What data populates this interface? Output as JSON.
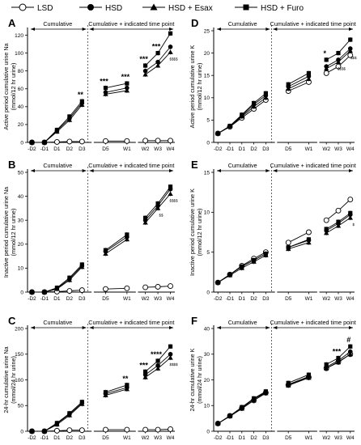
{
  "legend": [
    {
      "label": "LSD",
      "marker": "circle-open"
    },
    {
      "label": "HSD",
      "marker": "circle-filled"
    },
    {
      "label": "HSD + Esax",
      "marker": "triangle-filled"
    },
    {
      "label": "HSD + Furo",
      "marker": "square-filled"
    }
  ],
  "period_labels": {
    "cumulative": "Cumulative",
    "indicated": "Cumulative + indicated time point"
  },
  "colors": {
    "line": "#000000",
    "open_fill": "#ffffff",
    "filled": "#000000"
  },
  "chart_data": [
    {
      "panel": "A",
      "type": "line",
      "ylabel": [
        "Active period cumulative urine Na",
        "(mmol/12 hr urine)"
      ],
      "ylim": [
        0,
        125
      ],
      "yticks": [
        0,
        20,
        40,
        60,
        80,
        100,
        120
      ],
      "categories": [
        "-D2",
        "-D1",
        "D1",
        "D2",
        "D3",
        "D5",
        "W1",
        "W2",
        "W3",
        "W4"
      ],
      "series": [
        {
          "name": "LSD",
          "values": [
            0,
            0,
            0.5,
            1,
            1,
            1.5,
            1.5,
            2,
            2,
            2
          ]
        },
        {
          "name": "HSD",
          "values": [
            0,
            0,
            13,
            27,
            44,
            56,
            61,
            80,
            90,
            107
          ]
        },
        {
          "name": "HSD + Esax",
          "values": [
            0,
            0,
            12,
            25,
            42,
            54,
            58,
            76,
            86,
            101
          ]
        },
        {
          "name": "HSD + Furo",
          "values": [
            0,
            0,
            14,
            29,
            46,
            61,
            66,
            86,
            100,
            122
          ]
        }
      ],
      "annotations": [
        "**",
        "***",
        "***",
        "***",
        "***",
        "$$$$"
      ]
    },
    {
      "panel": "B",
      "type": "line",
      "ylabel": [
        "Inactive period cumulative urine Na",
        "(mmol/12 hr urine)"
      ],
      "ylim": [
        0,
        50
      ],
      "yticks": [
        0,
        10,
        20,
        30,
        40,
        50
      ],
      "categories": [
        "-D2",
        "-D1",
        "D1",
        "D2",
        "D3",
        "D5",
        "W1",
        "W2",
        "W3",
        "W4"
      ],
      "series": [
        {
          "name": "LSD",
          "values": [
            0,
            0,
            0.2,
            0.5,
            0.8,
            1.3,
            1.6,
            2.0,
            2.2,
            2.5
          ]
        },
        {
          "name": "HSD",
          "values": [
            0,
            0,
            1.5,
            5.5,
            11,
            17,
            23,
            30,
            36,
            43
          ]
        },
        {
          "name": "HSD + Esax",
          "values": [
            0,
            0,
            1.3,
            5,
            10.5,
            16,
            22,
            29,
            35,
            41
          ]
        },
        {
          "name": "HSD + Furo",
          "values": [
            0,
            0,
            1.8,
            6,
            11.5,
            17.5,
            24,
            31,
            37,
            44
          ]
        }
      ],
      "annotations": [
        "$$",
        "$$$$"
      ]
    },
    {
      "panel": "C",
      "type": "line",
      "ylabel": [
        "24-hr cumulative urine Na",
        "(mmol/24 hr urine)"
      ],
      "ylim": [
        0,
        200
      ],
      "yticks": [
        0,
        50,
        100,
        150,
        200
      ],
      "categories": [
        "-D2",
        "-D1",
        "D1",
        "D2",
        "D3",
        "D5",
        "W1",
        "W2",
        "W3",
        "W4"
      ],
      "series": [
        {
          "name": "LSD",
          "values": [
            0,
            0,
            1,
            2,
            2,
            3,
            3,
            3,
            3,
            4
          ]
        },
        {
          "name": "HSD",
          "values": [
            0,
            0,
            15,
            33,
            55,
            73,
            85,
            110,
            128,
            150
          ]
        },
        {
          "name": "HSD + Esax",
          "values": [
            0,
            0,
            13,
            31,
            53,
            70,
            82,
            105,
            122,
            143
          ]
        },
        {
          "name": "HSD + Furo",
          "values": [
            0,
            0,
            16,
            35,
            57,
            76,
            90,
            116,
            137,
            165
          ]
        }
      ],
      "annotations": [
        "**",
        "***",
        "****",
        "$$$$"
      ]
    },
    {
      "panel": "D",
      "type": "line",
      "ylabel": [
        "Active period cumulative urine K",
        "(mmol/12 hr urine)"
      ],
      "ylim": [
        0,
        25
      ],
      "yticks": [
        0,
        5,
        10,
        15,
        20,
        25
      ],
      "categories": [
        "-D2",
        "-D1",
        "D1",
        "D2",
        "D3",
        "D5",
        "W1",
        "W2",
        "W3",
        "W4"
      ],
      "series": [
        {
          "name": "LSD",
          "values": [
            2,
            3.5,
            5.5,
            7.5,
            9.5,
            11.5,
            13.5,
            15.5,
            17,
            19.5
          ]
        },
        {
          "name": "HSD",
          "values": [
            2,
            3.6,
            6,
            8.5,
            10.5,
            12.5,
            14.8,
            17,
            18.5,
            21
          ]
        },
        {
          "name": "HSD + Esax",
          "values": [
            2,
            3.6,
            5.8,
            8,
            10,
            12,
            14.2,
            16.5,
            18,
            20.5
          ]
        },
        {
          "name": "HSD + Furo",
          "values": [
            2,
            3.7,
            6.2,
            8.8,
            11,
            13,
            15.5,
            18.5,
            20,
            23
          ]
        }
      ],
      "annotations": [
        "*",
        "$$$$",
        "$$$"
      ]
    },
    {
      "panel": "E",
      "type": "line",
      "ylabel": [
        "Inactive period cumulative urine K",
        "(mmol/12 hr urine)"
      ],
      "ylim": [
        0,
        15
      ],
      "yticks": [
        0,
        5,
        10,
        15
      ],
      "categories": [
        "-D2",
        "-D1",
        "D1",
        "D2",
        "D3",
        "D5",
        "W1",
        "W2",
        "W3",
        "W4"
      ],
      "series": [
        {
          "name": "LSD",
          "values": [
            1.2,
            2.2,
            3.3,
            4.2,
            5.0,
            6.2,
            7.5,
            9.0,
            10.2,
            11.6
          ]
        },
        {
          "name": "HSD",
          "values": [
            1.2,
            2.2,
            3.2,
            4.0,
            4.8,
            5.6,
            6.5,
            7.7,
            8.6,
            9.7
          ]
        },
        {
          "name": "HSD + Esax",
          "values": [
            1.2,
            2.1,
            3.0,
            3.8,
            4.6,
            5.4,
            6.2,
            7.4,
            8.3,
            9.3
          ]
        },
        {
          "name": "HSD + Furo",
          "values": [
            1.2,
            2.2,
            3.2,
            4.0,
            4.8,
            5.6,
            6.6,
            7.9,
            8.8,
            9.9
          ]
        }
      ],
      "annotations": [
        "$"
      ]
    },
    {
      "panel": "F",
      "type": "line",
      "ylabel": [
        "24-hr cumulative urine K",
        "(mmol/24 hr urine)"
      ],
      "ylim": [
        0,
        40
      ],
      "yticks": [
        0,
        10,
        20,
        30,
        40
      ],
      "categories": [
        "-D2",
        "-D1",
        "D1",
        "D2",
        "D3",
        "D5",
        "W1",
        "W2",
        "W3",
        "W4"
      ],
      "series": [
        {
          "name": "LSD",
          "values": [
            3,
            6,
            9,
            12,
            15,
            18,
            21,
            24.5,
            27,
            30
          ]
        },
        {
          "name": "HSD",
          "values": [
            3,
            6,
            9.2,
            12.5,
            15.2,
            18.2,
            21.3,
            25,
            27.5,
            31
          ]
        },
        {
          "name": "HSD + Esax",
          "values": [
            3,
            5.8,
            8.8,
            12,
            14.8,
            17.8,
            20.8,
            24.5,
            26.8,
            30
          ]
        },
        {
          "name": "HSD + Furo",
          "values": [
            3,
            6,
            9.4,
            12.8,
            15.5,
            18.8,
            22,
            26,
            28.5,
            33
          ]
        }
      ],
      "annotations": [
        "***",
        "#"
      ]
    }
  ]
}
